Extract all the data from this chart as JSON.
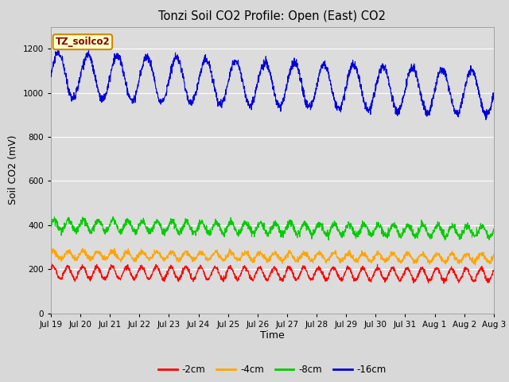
{
  "title": "Tonzi Soil CO2 Profile: Open (East) CO2",
  "ylabel": "Soil CO2 (mV)",
  "xlabel": "Time",
  "ylim": [
    0,
    1300
  ],
  "yticks": [
    0,
    200,
    400,
    600,
    800,
    1000,
    1200
  ],
  "xtick_labels": [
    "Jul 19",
    "Jul 20",
    "Jul 21",
    "Jul 22",
    "Jul 23",
    "Jul 24",
    "Jul 25",
    "Jul 26",
    "Jul 27",
    "Jul 28",
    "Jul 29",
    "Jul 30",
    "Jul 31",
    "Aug 1",
    "Aug 2",
    "Aug 3"
  ],
  "legend_labels": [
    "-2cm",
    "-4cm",
    "-8cm",
    "-16cm"
  ],
  "legend_colors": [
    "#ff0000",
    "#ffa500",
    "#00cc00",
    "#0000dd"
  ],
  "line_colors": [
    "#ff0000",
    "#ffa500",
    "#00cc00",
    "#0000dd"
  ],
  "fig_bg_color": "#d8d8d8",
  "plot_bg_color": "#dcdcdc",
  "annotation_text": "TZ_soilco2",
  "annotation_bg": "#ffffcc",
  "annotation_border": "#cc8800",
  "annotation_text_color": "#880000",
  "days": 15,
  "n_points": 2160,
  "blue_mean": 1080,
  "blue_amp": 100,
  "blue_noise": 10,
  "blue_trend": -80,
  "green_mean": 400,
  "green_amp": 25,
  "green_noise": 8,
  "green_trend": -30,
  "orange_mean": 265,
  "orange_amp": 18,
  "orange_noise": 6,
  "orange_trend": -15,
  "red_mean": 185,
  "red_amp": 28,
  "red_noise": 5,
  "red_trend": -10
}
